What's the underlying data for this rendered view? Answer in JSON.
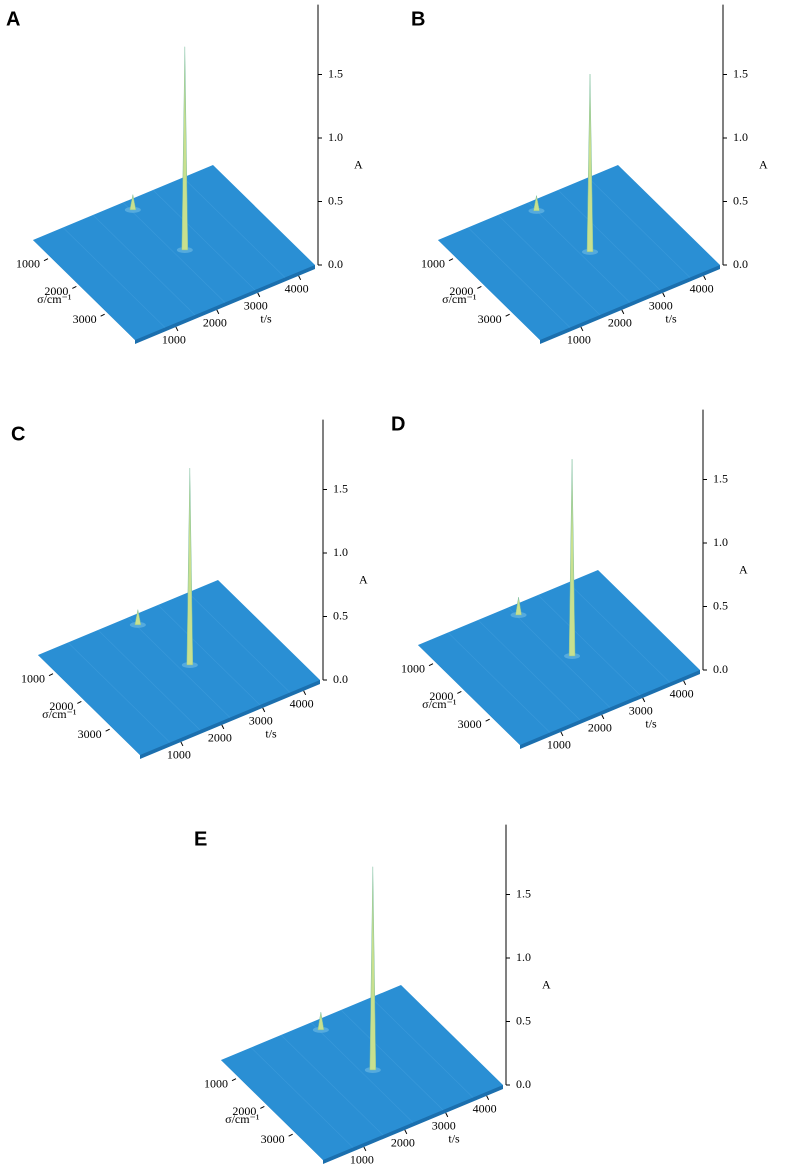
{
  "chart_data": [
    {
      "type": "surface3d",
      "panel_label": "A",
      "xlabel": "t/s",
      "ylabel": "σ/cm⁻¹",
      "zlabel": "A",
      "xlim": [
        0,
        4400
      ],
      "ylim": [
        400,
        4000
      ],
      "zlim": [
        0,
        2.05
      ],
      "xticks": [
        1000,
        2000,
        3000,
        4000
      ],
      "yticks": [
        1000,
        2000,
        3000
      ],
      "zticks": [
        {
          "value": 0,
          "label": "0.0"
        },
        0.5,
        {
          "value": 1,
          "label": "1.0"
        },
        1.5
      ],
      "surface_color": "#2a8fd4",
      "peak_color": "#c8e08e",
      "peaks": [
        {
          "t": 2430,
          "sigma": 2250,
          "A": 1.6
        },
        {
          "t": 2240,
          "sigma": 690,
          "A": 0.12
        }
      ]
    },
    {
      "type": "surface3d",
      "panel_label": "B",
      "xlabel": "t/s",
      "ylabel": "σ/cm⁻¹",
      "zlabel": "A",
      "xlim": [
        0,
        4400
      ],
      "ylim": [
        400,
        4000
      ],
      "zlim": [
        0,
        2.05
      ],
      "xticks": [
        1000,
        2000,
        3000,
        4000
      ],
      "yticks": [
        1000,
        2000,
        3000
      ],
      "zticks": [
        {
          "value": 0,
          "label": "0.0"
        },
        0.5,
        {
          "value": 1,
          "label": "1.0"
        },
        1.5
      ],
      "surface_color": "#2a8fd4",
      "peak_color": "#c8e08e",
      "peaks": [
        {
          "t": 2400,
          "sigma": 2300,
          "A": 1.4
        },
        {
          "t": 2200,
          "sigma": 700,
          "A": 0.12
        }
      ]
    },
    {
      "type": "surface3d",
      "panel_label": "C",
      "xlabel": "t/s",
      "ylabel": "σ/cm⁻¹",
      "zlabel": "A",
      "xlim": [
        0,
        4400
      ],
      "ylim": [
        400,
        4000
      ],
      "zlim": [
        0,
        2.05
      ],
      "xticks": [
        1000,
        2000,
        3000,
        4000
      ],
      "yticks": [
        1000,
        2000,
        3000
      ],
      "zticks": [
        {
          "value": 0,
          "label": "0.0"
        },
        0.5,
        {
          "value": 1,
          "label": "1.0"
        },
        1.5
      ],
      "surface_color": "#2a8fd4",
      "peak_color": "#c8e08e",
      "peaks": [
        {
          "t": 2430,
          "sigma": 2250,
          "A": 1.55
        },
        {
          "t": 2240,
          "sigma": 690,
          "A": 0.12
        }
      ]
    },
    {
      "type": "surface3d",
      "panel_label": "D",
      "xlabel": "t/s",
      "ylabel": "σ/cm⁻¹",
      "zlabel": "A",
      "xlim": [
        0,
        4400
      ],
      "ylim": [
        400,
        4000
      ],
      "zlim": [
        0,
        2.05
      ],
      "xticks": [
        1000,
        2000,
        3000,
        4000
      ],
      "yticks": [
        1000,
        2000,
        3000
      ],
      "zticks": [
        {
          "value": 0,
          "label": "0.0"
        },
        0.5,
        {
          "value": 1,
          "label": "1.0"
        },
        1.5
      ],
      "surface_color": "#2a8fd4",
      "peak_color": "#c8e08e",
      "peaks": [
        {
          "t": 2450,
          "sigma": 2300,
          "A": 1.55
        },
        {
          "t": 2250,
          "sigma": 700,
          "A": 0.14
        }
      ]
    },
    {
      "type": "surface3d",
      "panel_label": "E",
      "xlabel": "t/s",
      "ylabel": "σ/cm⁻¹",
      "zlabel": "A",
      "xlim": [
        0,
        4400
      ],
      "ylim": [
        400,
        4000
      ],
      "zlim": [
        0,
        2.05
      ],
      "xticks": [
        1000,
        2000,
        3000,
        4000
      ],
      "yticks": [
        1000,
        2000,
        3000
      ],
      "zticks": [
        {
          "value": 0,
          "label": "0.0"
        },
        0.5,
        {
          "value": 1,
          "label": "1.0"
        },
        1.5
      ],
      "surface_color": "#2a8fd4",
      "peak_color": "#c8e08e",
      "peaks": [
        {
          "t": 2430,
          "sigma": 2250,
          "A": 1.6
        },
        {
          "t": 2240,
          "sigma": 690,
          "A": 0.14
        }
      ]
    }
  ]
}
